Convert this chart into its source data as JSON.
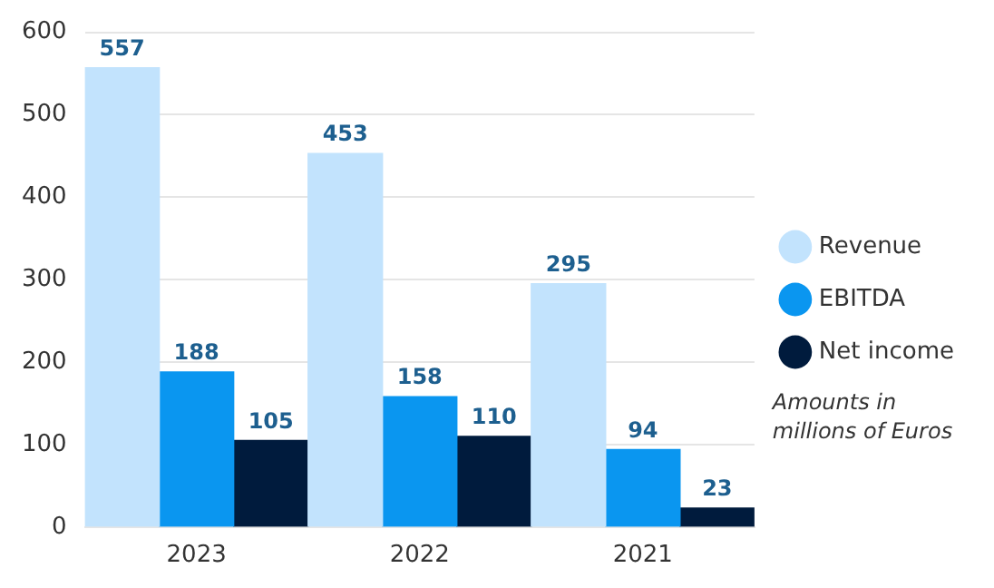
{
  "chart_data": {
    "type": "bar",
    "categories": [
      "2023",
      "2022",
      "2021"
    ],
    "series": [
      {
        "name": "Revenue",
        "color": "#c2e3fd",
        "values": [
          557,
          453,
          295
        ]
      },
      {
        "name": "EBITDA",
        "color": "#0a96f0",
        "values": [
          188,
          158,
          94
        ]
      },
      {
        "name": "Net income",
        "color": "#001b3d",
        "values": [
          105,
          110,
          23
        ]
      }
    ],
    "ylim": [
      0,
      600
    ],
    "yticks": [
      0,
      100,
      200,
      300,
      400,
      500,
      600
    ],
    "grid": "y",
    "legend": "right",
    "data_labels": true,
    "annotations": [
      "Amounts in millions of Euros"
    ]
  }
}
